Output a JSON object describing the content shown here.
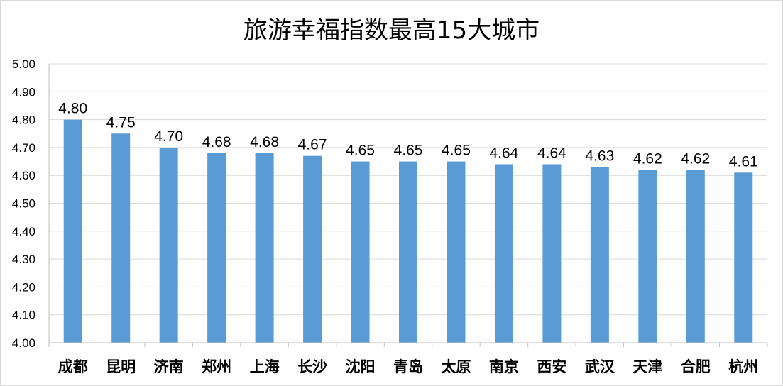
{
  "chart_data": {
    "type": "bar",
    "title": "旅游幸福指数最高15大城市",
    "xlabel": "",
    "ylabel": "",
    "ylim": [
      4.0,
      5.0
    ],
    "yticks": [
      "4.00",
      "4.10",
      "4.20",
      "4.30",
      "4.40",
      "4.50",
      "4.60",
      "4.70",
      "4.80",
      "4.90",
      "5.00"
    ],
    "grid": true,
    "legend": "none",
    "categories": [
      "成都",
      "昆明",
      "济南",
      "郑州",
      "上海",
      "长沙",
      "沈阳",
      "青岛",
      "太原",
      "南京",
      "西安",
      "武汉",
      "天津",
      "合肥",
      "杭州"
    ],
    "values": [
      4.8,
      4.75,
      4.7,
      4.68,
      4.68,
      4.67,
      4.65,
      4.65,
      4.65,
      4.64,
      4.64,
      4.63,
      4.62,
      4.62,
      4.61
    ],
    "data_labels": [
      "4.80",
      "4.75",
      "4.70",
      "4.68",
      "4.68",
      "4.67",
      "4.65",
      "4.65",
      "4.65",
      "4.64",
      "4.64",
      "4.63",
      "4.62",
      "4.62",
      "4.61"
    ]
  },
  "colors": {
    "bar": "#5b9bd5",
    "gridline": "#d9d9d9",
    "axis": "#bfbfbf"
  }
}
